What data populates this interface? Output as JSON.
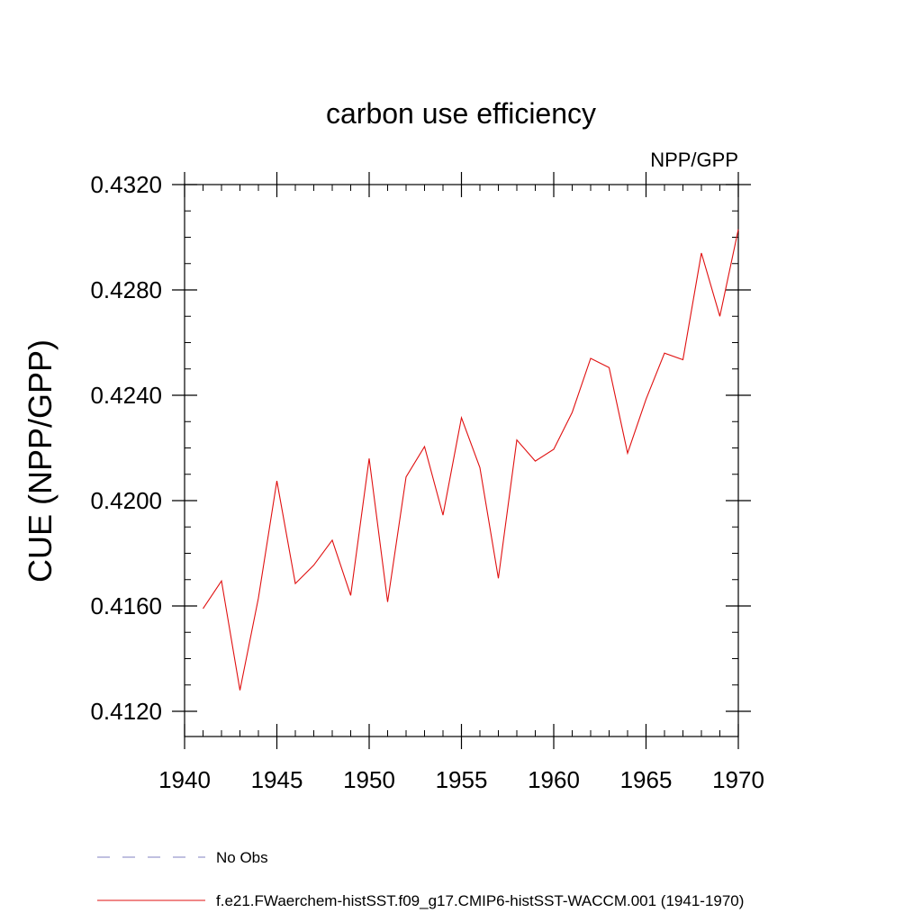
{
  "chart_data": {
    "type": "line",
    "title": "carbon use efficiency",
    "subtitle_right": "NPP/GPP",
    "xlabel": "",
    "ylabel": "CUE  (NPP/GPP)",
    "xlim": [
      1940,
      1970
    ],
    "ylim": [
      0.411,
      0.4325
    ],
    "x_ticks": [
      1940,
      1945,
      1950,
      1955,
      1960,
      1965,
      1970
    ],
    "x_tick_labels": [
      "1940",
      "1945",
      "1950",
      "1955",
      "1960",
      "1965",
      "1970"
    ],
    "y_ticks": [
      0.412,
      0.416,
      0.42,
      0.424,
      0.428,
      0.432
    ],
    "y_tick_labels": [
      "0.4120",
      "0.4160",
      "0.4200",
      "0.4240",
      "0.4280",
      "0.4320"
    ],
    "x_minor_step": 1,
    "y_minor_step": 0.001,
    "grid": false,
    "legend_position": "bottom",
    "legend": [
      {
        "label": "No Obs",
        "color": "#8080c0",
        "style": "dashed"
      },
      {
        "label": "f.e21.FWaerchem-histSST.f09_g17.CMIP6-histSST-WACCM.001 (1941-1970)",
        "color": "#e01010",
        "style": "solid"
      }
    ],
    "series": [
      {
        "name": "f.e21.FWaerchem-histSST.f09_g17.CMIP6-histSST-WACCM.001 (1941-1970)",
        "color": "#e01010",
        "x": [
          1941,
          1942,
          1943,
          1944,
          1945,
          1946,
          1947,
          1948,
          1949,
          1950,
          1951,
          1952,
          1953,
          1954,
          1955,
          1956,
          1957,
          1958,
          1959,
          1960,
          1961,
          1962,
          1963,
          1964,
          1965,
          1966,
          1967,
          1968,
          1969,
          1970
        ],
        "values": [
          0.4159,
          0.41695,
          0.4128,
          0.4163,
          0.42075,
          0.41685,
          0.41755,
          0.4185,
          0.4164,
          0.4216,
          0.41615,
          0.4209,
          0.42205,
          0.41945,
          0.42315,
          0.42125,
          0.41705,
          0.4223,
          0.4215,
          0.42195,
          0.42335,
          0.4254,
          0.42505,
          0.4218,
          0.42385,
          0.4256,
          0.42535,
          0.4294,
          0.427,
          0.4303
        ]
      }
    ]
  }
}
